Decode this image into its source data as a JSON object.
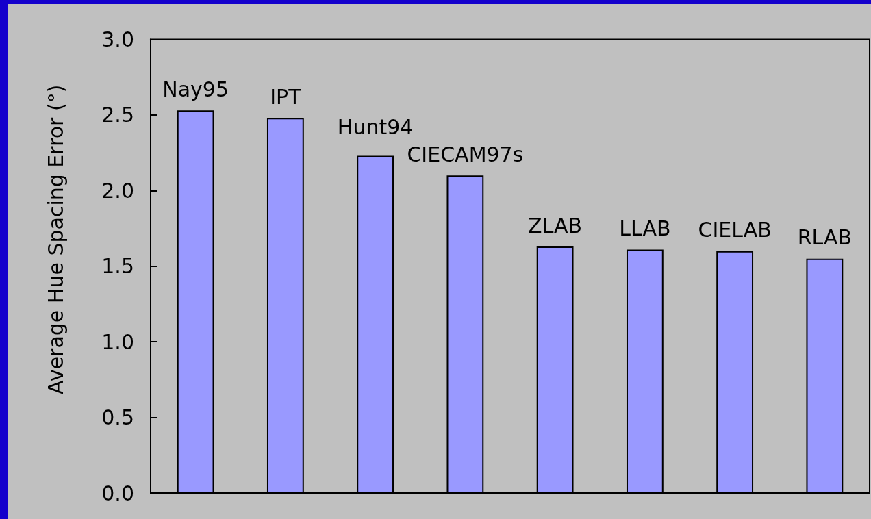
{
  "chart_data": {
    "type": "bar",
    "categories": [
      "Nay95",
      "IPT",
      "Hunt94",
      "CIECAM97s",
      "ZLAB",
      "LLAB",
      "CIELAB",
      "RLAB"
    ],
    "values": [
      2.53,
      2.48,
      2.23,
      2.1,
      1.63,
      1.61,
      1.6,
      1.55
    ],
    "color": "#9999ff",
    "ylabel": "Average Hue Spacing Error (°)",
    "ylim": [
      0,
      3
    ],
    "yticks": [
      {
        "value": 0,
        "label": "0.0"
      },
      {
        "value": 0.5,
        "label": "0.5"
      },
      {
        "value": 1,
        "label": "1.0"
      },
      {
        "value": 1.5,
        "label": "1.5"
      },
      {
        "value": 2,
        "label": "2.0"
      },
      {
        "value": 2.5,
        "label": "2.5"
      },
      {
        "value": 3,
        "label": "3.0"
      }
    ],
    "tick_labels": "y"
  }
}
